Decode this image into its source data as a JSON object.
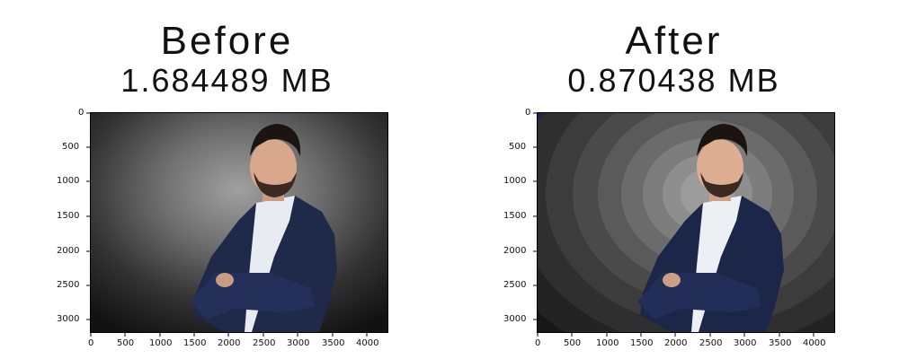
{
  "before": {
    "title": "Before",
    "file_size": "1.684489 MB"
  },
  "after": {
    "title": "After",
    "file_size": "0.870438 MB"
  },
  "axes": {
    "x_ticks": [
      "0",
      "500",
      "1000",
      "1500",
      "2000",
      "2500",
      "3000",
      "3500",
      "4000"
    ],
    "y_ticks": [
      "0",
      "500",
      "1000",
      "1500",
      "2000",
      "2500",
      "3000"
    ]
  },
  "colors": {
    "background_dark": "#151515",
    "background_light": "#9a9a9a",
    "jacket": "#1f2a4a",
    "shirt": "#e8ecf2",
    "skin": "#d9a88c",
    "hair": "#1c1410"
  }
}
